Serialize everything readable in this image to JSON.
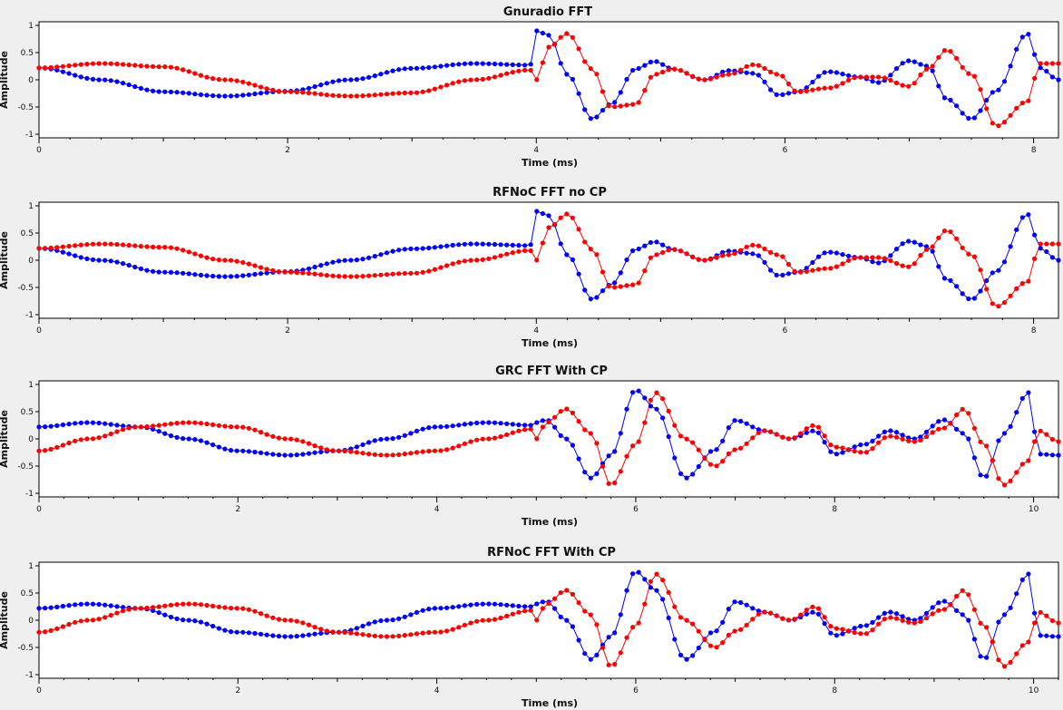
{
  "chart_data": [
    {
      "type": "line",
      "title": "Gnuradio FFT",
      "xlabel": "Time (ms)",
      "ylabel": "Amplitude",
      "xlim": [
        0,
        8.2
      ],
      "ylim": [
        -1,
        1
      ],
      "xticks": [
        0,
        2,
        4,
        6,
        8
      ],
      "yticks": [
        1,
        0.5,
        0,
        -0.5,
        -1
      ],
      "ytick_labels": [
        "1",
        "0.5",
        "0",
        "-0.5",
        "-1"
      ],
      "markers": "filled-circles",
      "cp": 0,
      "series_colors": [
        "#0000ff",
        "#ff0000"
      ],
      "series": [
        {
          "name": "",
          "description": "blue (in-phase) trace",
          "x": [
            0,
            0.5,
            1,
            1.5,
            2,
            2.5,
            3,
            3.5,
            3.95,
            4.0,
            4.1,
            4.25,
            4.45,
            4.6,
            4.8,
            4.95,
            5.1,
            5.35,
            5.55,
            5.75,
            5.95,
            6.1,
            6.35,
            6.6,
            6.75,
            7.0,
            7.15,
            7.3,
            7.5,
            7.7,
            7.95,
            8.05,
            8.2
          ],
          "values": [
            0.22,
            0.0,
            -0.22,
            -0.3,
            -0.21,
            0.0,
            0.21,
            0.3,
            0.27,
            0.9,
            0.82,
            0.1,
            -0.72,
            -0.45,
            0.2,
            0.34,
            0.2,
            0.0,
            0.17,
            0.12,
            -0.28,
            -0.22,
            0.15,
            0.05,
            -0.05,
            0.35,
            0.25,
            -0.35,
            -0.72,
            -0.2,
            0.85,
            0.22,
            0.0
          ]
        },
        {
          "name": "",
          "description": "red (quadrature) trace",
          "x": [
            0,
            0.5,
            1,
            1.5,
            2,
            2.5,
            3,
            3.5,
            3.95,
            4.0,
            4.1,
            4.25,
            4.45,
            4.6,
            4.8,
            4.95,
            5.1,
            5.35,
            5.55,
            5.75,
            5.95,
            6.1,
            6.35,
            6.6,
            6.75,
            7.0,
            7.15,
            7.3,
            7.5,
            7.7,
            7.95,
            8.05,
            8.2
          ],
          "values": [
            0.22,
            0.3,
            0.24,
            0.0,
            -0.22,
            -0.3,
            -0.24,
            0.0,
            0.18,
            0.0,
            0.6,
            0.85,
            0.2,
            -0.5,
            -0.45,
            0.1,
            0.2,
            0.0,
            0.1,
            0.28,
            0.1,
            -0.22,
            -0.15,
            0.05,
            0.05,
            -0.12,
            0.2,
            0.55,
            0.1,
            -0.85,
            -0.4,
            0.3,
            0.3
          ]
        }
      ]
    },
    {
      "type": "line",
      "title": "RFNoC FFT no CP",
      "xlabel": "Time (ms)",
      "ylabel": "Amplitude",
      "xlim": [
        0,
        8.2
      ],
      "ylim": [
        -1,
        1
      ],
      "xticks": [
        0,
        2,
        4,
        6,
        8
      ],
      "yticks": [
        1,
        0.5,
        0,
        -0.5,
        -1
      ],
      "ytick_labels": [
        "1",
        "0.5",
        "0",
        "-0.5",
        "-1"
      ],
      "markers": "filled-circles",
      "cp": 0,
      "series_colors": [
        "#0000ff",
        "#ff0000"
      ],
      "series": [
        {
          "name": "",
          "description": "blue (in-phase) trace",
          "x": [
            0,
            0.5,
            1,
            1.5,
            2,
            2.5,
            3,
            3.5,
            3.95,
            4.0,
            4.1,
            4.25,
            4.45,
            4.6,
            4.8,
            4.95,
            5.1,
            5.35,
            5.55,
            5.75,
            5.95,
            6.1,
            6.35,
            6.6,
            6.75,
            7.0,
            7.15,
            7.3,
            7.5,
            7.7,
            7.95,
            8.05,
            8.2
          ],
          "values": [
            0.22,
            0.0,
            -0.22,
            -0.3,
            -0.21,
            0.0,
            0.21,
            0.3,
            0.27,
            0.9,
            0.82,
            0.1,
            -0.72,
            -0.45,
            0.2,
            0.34,
            0.2,
            0.0,
            0.17,
            0.12,
            -0.28,
            -0.22,
            0.15,
            0.05,
            -0.05,
            0.35,
            0.25,
            -0.35,
            -0.72,
            -0.2,
            0.85,
            0.22,
            0.0
          ]
        },
        {
          "name": "",
          "description": "red (quadrature) trace",
          "x": [
            0,
            0.5,
            1,
            1.5,
            2,
            2.5,
            3,
            3.5,
            3.95,
            4.0,
            4.1,
            4.25,
            4.45,
            4.6,
            4.8,
            4.95,
            5.1,
            5.35,
            5.55,
            5.75,
            5.95,
            6.1,
            6.35,
            6.6,
            6.75,
            7.0,
            7.15,
            7.3,
            7.5,
            7.7,
            7.95,
            8.05,
            8.2
          ],
          "values": [
            0.22,
            0.3,
            0.24,
            0.0,
            -0.22,
            -0.3,
            -0.24,
            0.0,
            0.18,
            0.0,
            0.6,
            0.85,
            0.2,
            -0.5,
            -0.45,
            0.1,
            0.2,
            0.0,
            0.1,
            0.28,
            0.1,
            -0.22,
            -0.15,
            0.05,
            0.05,
            -0.12,
            0.2,
            0.55,
            0.1,
            -0.85,
            -0.4,
            0.3,
            0.3
          ]
        }
      ]
    },
    {
      "type": "line",
      "title": "GRC FFT With CP",
      "xlabel": "Time (ms)",
      "ylabel": "Amplitude",
      "xlim": [
        0,
        10.25
      ],
      "ylim": [
        -1,
        1
      ],
      "xticks": [
        0,
        2,
        4,
        6,
        8,
        10
      ],
      "yticks": [
        1,
        0.5,
        0,
        -0.5,
        -1
      ],
      "ytick_labels": [
        "1",
        "0.5",
        "0",
        "-0.5",
        "-1"
      ],
      "markers": "filled-circles",
      "cp": 1,
      "series_colors": [
        "#0000ff",
        "#ff0000"
      ],
      "series": [
        {
          "name": "",
          "description": "blue (in-phase) trace",
          "x": [
            0,
            0.5,
            1,
            1.5,
            2,
            2.5,
            3,
            3.5,
            4,
            4.5,
            4.95,
            5.0,
            5.1,
            5.3,
            5.55,
            5.75,
            6.0,
            6.2,
            6.5,
            6.8,
            7.0,
            7.3,
            7.55,
            7.8,
            8.0,
            8.3,
            8.55,
            8.8,
            9.1,
            9.3,
            9.5,
            9.7,
            9.95,
            10.05,
            10.25
          ],
          "values": [
            0.22,
            0.3,
            0.22,
            0.0,
            -0.22,
            -0.3,
            -0.22,
            0.0,
            0.22,
            0.3,
            0.25,
            0.3,
            0.35,
            0.0,
            -0.72,
            -0.3,
            0.9,
            0.55,
            -0.72,
            -0.2,
            0.34,
            0.15,
            0.0,
            0.15,
            -0.28,
            -0.1,
            0.15,
            0.0,
            0.35,
            0.1,
            -0.72,
            0.1,
            0.85,
            -0.28,
            -0.3
          ]
        },
        {
          "name": "",
          "description": "red (quadrature) trace",
          "x": [
            0,
            0.5,
            1,
            1.5,
            2,
            2.5,
            3,
            3.5,
            4,
            4.5,
            4.95,
            5.0,
            5.1,
            5.3,
            5.55,
            5.75,
            6.0,
            6.2,
            6.5,
            6.8,
            7.0,
            7.3,
            7.55,
            7.8,
            8.0,
            8.3,
            8.55,
            8.8,
            9.1,
            9.3,
            9.5,
            9.7,
            9.95,
            10.05,
            10.25
          ],
          "values": [
            -0.22,
            0.0,
            0.22,
            0.3,
            0.22,
            0.0,
            -0.22,
            -0.3,
            -0.22,
            0.0,
            0.18,
            0.0,
            0.3,
            0.55,
            0.1,
            -0.85,
            -0.1,
            0.85,
            0.0,
            -0.5,
            -0.2,
            0.15,
            0.0,
            0.25,
            -0.15,
            -0.25,
            0.05,
            -0.05,
            0.2,
            0.55,
            -0.1,
            -0.85,
            -0.4,
            0.15,
            -0.05
          ]
        }
      ]
    },
    {
      "type": "line",
      "title": "RFNoC FFT With CP",
      "xlabel": "Time (ms)",
      "ylabel": "Amplitude",
      "xlim": [
        0,
        10.25
      ],
      "ylim": [
        -1,
        1
      ],
      "xticks": [
        0,
        2,
        4,
        6,
        8,
        10
      ],
      "yticks": [
        1,
        0.5,
        0,
        -0.5,
        -1
      ],
      "ytick_labels": [
        "1",
        "0.5",
        "0",
        "-0.5",
        "-1"
      ],
      "markers": "filled-circles",
      "cp": 1,
      "series_colors": [
        "#0000ff",
        "#ff0000"
      ],
      "series": [
        {
          "name": "",
          "description": "blue (in-phase) trace",
          "x": [
            0,
            0.5,
            1,
            1.5,
            2,
            2.5,
            3,
            3.5,
            4,
            4.5,
            4.95,
            5.0,
            5.1,
            5.3,
            5.55,
            5.75,
            6.0,
            6.2,
            6.5,
            6.8,
            7.0,
            7.3,
            7.55,
            7.8,
            8.0,
            8.3,
            8.55,
            8.8,
            9.1,
            9.3,
            9.5,
            9.7,
            9.95,
            10.05,
            10.25
          ],
          "values": [
            0.22,
            0.3,
            0.22,
            0.0,
            -0.22,
            -0.3,
            -0.22,
            0.0,
            0.22,
            0.3,
            0.25,
            0.3,
            0.35,
            0.0,
            -0.72,
            -0.3,
            0.9,
            0.55,
            -0.72,
            -0.2,
            0.34,
            0.15,
            0.0,
            0.15,
            -0.28,
            -0.1,
            0.15,
            0.0,
            0.35,
            0.1,
            -0.72,
            0.1,
            0.85,
            -0.28,
            -0.3
          ]
        },
        {
          "name": "",
          "description": "red (quadrature) trace",
          "x": [
            0,
            0.5,
            1,
            1.5,
            2,
            2.5,
            3,
            3.5,
            4,
            4.5,
            4.95,
            5.0,
            5.1,
            5.3,
            5.55,
            5.75,
            6.0,
            6.2,
            6.5,
            6.8,
            7.0,
            7.3,
            7.55,
            7.8,
            8.0,
            8.3,
            8.55,
            8.8,
            9.1,
            9.3,
            9.5,
            9.7,
            9.95,
            10.05,
            10.25
          ],
          "values": [
            -0.22,
            0.0,
            0.22,
            0.3,
            0.22,
            0.0,
            -0.22,
            -0.3,
            -0.22,
            0.0,
            0.18,
            0.0,
            0.3,
            0.55,
            0.1,
            -0.85,
            -0.1,
            0.85,
            0.0,
            -0.5,
            -0.2,
            0.15,
            0.0,
            0.25,
            -0.15,
            -0.25,
            0.05,
            -0.05,
            0.2,
            0.55,
            -0.1,
            -0.85,
            -0.4,
            0.15,
            -0.05
          ]
        }
      ]
    }
  ]
}
